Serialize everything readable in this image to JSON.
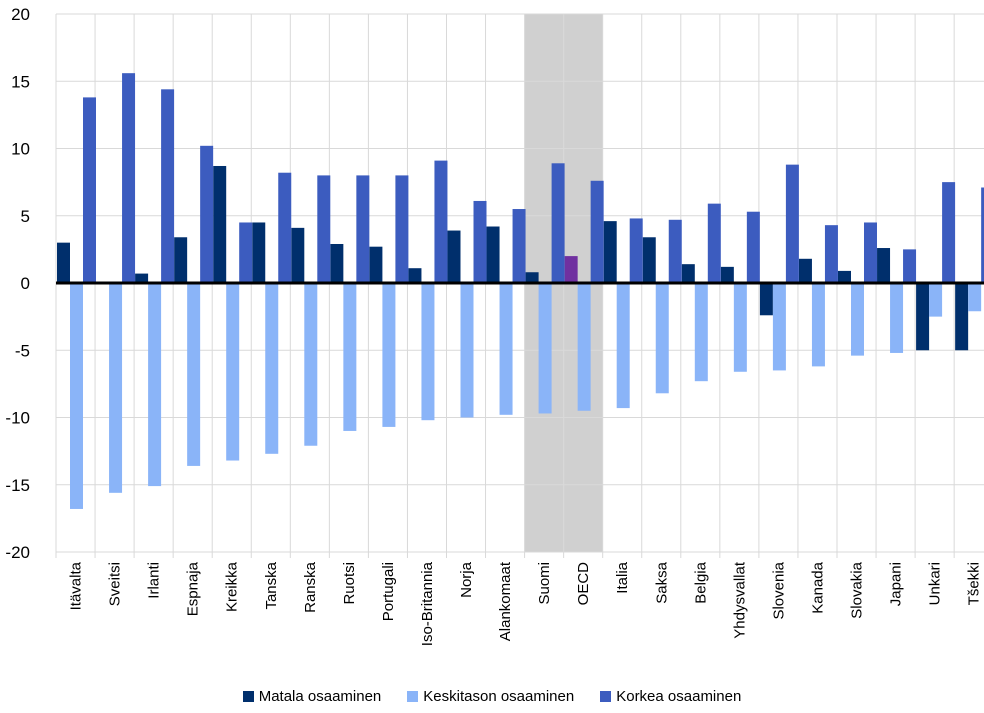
{
  "chart_data": {
    "type": "bar",
    "title": "",
    "xlabel": "",
    "ylabel": "",
    "ylim": [
      -20,
      20
    ],
    "yticks": [
      20,
      15,
      10,
      5,
      0,
      -5,
      -10,
      -15,
      -20
    ],
    "categories": [
      "Itävalta",
      "Sveitsi",
      "Irlanti",
      "Espnaja",
      "Kreikka",
      "Tanska",
      "Ranska",
      "Ruotsi",
      "Portugali",
      "Iso-Britannia",
      "Norja",
      "Alankomaat",
      "Suomi",
      "OECD",
      "Italia",
      "Saksa",
      "Belgia",
      "Yhdysvallat",
      "Slovenia",
      "Kanada",
      "Slovakia",
      "Japani",
      "Unkari",
      "Tšekki"
    ],
    "highlight_categories": [
      "Suomi",
      "OECD"
    ],
    "highlight_bar_color": "#7030a0",
    "highlight_background": "#d0d0d0",
    "grid": true,
    "legend_position": "bottom",
    "series": [
      {
        "name": "Matala osaaminen",
        "color": "#002f6c",
        "values": [
          3.0,
          0.0,
          0.7,
          3.4,
          8.7,
          4.5,
          4.1,
          2.9,
          2.7,
          1.1,
          3.9,
          4.2,
          0.8,
          2.0,
          4.6,
          3.4,
          1.4,
          1.2,
          -2.4,
          1.8,
          0.9,
          2.6,
          -5.0,
          -5.0
        ]
      },
      {
        "name": "Keskitason osaaminen",
        "color": "#8ab4f8",
        "values": [
          -16.8,
          -15.6,
          -15.1,
          -13.6,
          -13.2,
          -12.7,
          -12.1,
          -11.0,
          -10.7,
          -10.2,
          -10.0,
          -9.8,
          -9.7,
          -9.5,
          -9.3,
          -8.2,
          -7.3,
          -6.6,
          -6.5,
          -6.2,
          -5.4,
          -5.2,
          -2.5,
          -2.1
        ]
      },
      {
        "name": "Korkea osaaminen",
        "color": "#3c5cbf",
        "values": [
          13.8,
          15.6,
          14.4,
          10.2,
          4.5,
          8.2,
          8.0,
          8.0,
          8.0,
          9.1,
          6.1,
          5.5,
          8.9,
          7.6,
          4.8,
          4.7,
          5.9,
          5.3,
          8.8,
          4.3,
          4.5,
          2.5,
          7.5,
          7.1
        ]
      }
    ]
  }
}
